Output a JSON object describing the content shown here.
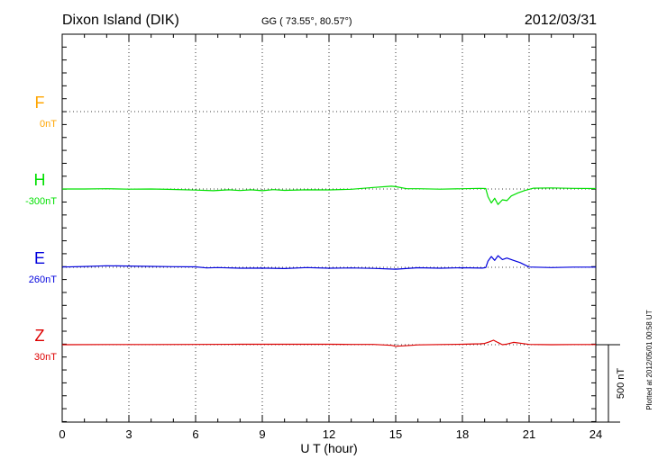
{
  "header": {
    "station": "Dixon Island (DIK)",
    "coords": "GG ( 73.55°,  80.57°)",
    "date": "2012/03/31"
  },
  "footer": {
    "plotted": "Plotted at 2012/05/01 00:58 UT",
    "scale_label": "500 nT"
  },
  "colors": {
    "F": "#ffa500",
    "H": "#00e000",
    "E": "#0000dd",
    "Z": "#dd0000"
  },
  "chart_data": {
    "type": "line",
    "xlabel": "U T (hour)",
    "xlim": [
      0,
      24
    ],
    "x_ticks": [
      "0",
      "3",
      "6",
      "9",
      "12",
      "15",
      "18",
      "21",
      "24"
    ],
    "scale_nT": 500,
    "series": [
      {
        "name": "F",
        "baseline_label": "0nT",
        "color": "#ffa500",
        "points": []
      },
      {
        "name": "H",
        "baseline_label": "-300nT",
        "color": "#00e000",
        "points": [
          [
            0,
            -300
          ],
          [
            1,
            -300
          ],
          [
            2,
            -298
          ],
          [
            3,
            -301
          ],
          [
            4,
            -300
          ],
          [
            5,
            -303
          ],
          [
            6,
            -307
          ],
          [
            6.8,
            -311
          ],
          [
            7.5,
            -305
          ],
          [
            8,
            -310
          ],
          [
            8.5,
            -305
          ],
          [
            9,
            -311
          ],
          [
            9.5,
            -304
          ],
          [
            10,
            -309
          ],
          [
            11,
            -305
          ],
          [
            12,
            -306
          ],
          [
            13,
            -302
          ],
          [
            14,
            -290
          ],
          [
            14.8,
            -282
          ],
          [
            15,
            -285
          ],
          [
            15.5,
            -298
          ],
          [
            16,
            -298
          ],
          [
            17,
            -301
          ],
          [
            18,
            -298
          ],
          [
            18.8,
            -296
          ],
          [
            19.05,
            -297
          ],
          [
            19.15,
            -350
          ],
          [
            19.3,
            -390
          ],
          [
            19.45,
            -360
          ],
          [
            19.6,
            -400
          ],
          [
            19.8,
            -370
          ],
          [
            20,
            -375
          ],
          [
            20.2,
            -345
          ],
          [
            20.5,
            -325
          ],
          [
            20.8,
            -310
          ],
          [
            21.2,
            -295
          ],
          [
            22,
            -293
          ],
          [
            23,
            -296
          ],
          [
            24,
            -297
          ]
        ]
      },
      {
        "name": "E",
        "baseline_label": "260nT",
        "color": "#0000dd",
        "points": [
          [
            0,
            262
          ],
          [
            1,
            265
          ],
          [
            2,
            270
          ],
          [
            3,
            268
          ],
          [
            4,
            266
          ],
          [
            5,
            264
          ],
          [
            6,
            263
          ],
          [
            6.5,
            256
          ],
          [
            7,
            258
          ],
          [
            8,
            254
          ],
          [
            9,
            255
          ],
          [
            10,
            252
          ],
          [
            11,
            258
          ],
          [
            12,
            254
          ],
          [
            13,
            256
          ],
          [
            14,
            253
          ],
          [
            15,
            248
          ],
          [
            16,
            257
          ],
          [
            17,
            254
          ],
          [
            18,
            257
          ],
          [
            18.9,
            255
          ],
          [
            19.05,
            258
          ],
          [
            19.15,
            300
          ],
          [
            19.3,
            330
          ],
          [
            19.45,
            305
          ],
          [
            19.6,
            335
          ],
          [
            19.8,
            310
          ],
          [
            20,
            320
          ],
          [
            20.3,
            305
          ],
          [
            20.6,
            290
          ],
          [
            21,
            262
          ],
          [
            22,
            258
          ],
          [
            23,
            261
          ],
          [
            24,
            261
          ]
        ]
      },
      {
        "name": "Z",
        "baseline_label": "30nT",
        "color": "#dd0000",
        "points": [
          [
            0,
            30
          ],
          [
            2,
            31
          ],
          [
            4,
            31
          ],
          [
            6,
            32
          ],
          [
            8,
            33
          ],
          [
            10,
            33
          ],
          [
            12,
            33
          ],
          [
            13,
            32
          ],
          [
            14,
            32
          ],
          [
            14.8,
            26
          ],
          [
            15,
            20
          ],
          [
            15.4,
            23
          ],
          [
            16,
            29
          ],
          [
            17,
            31
          ],
          [
            18,
            33
          ],
          [
            18.8,
            36
          ],
          [
            19,
            38
          ],
          [
            19.2,
            48
          ],
          [
            19.4,
            59
          ],
          [
            19.6,
            44
          ],
          [
            19.8,
            30
          ],
          [
            20,
            34
          ],
          [
            20.3,
            45
          ],
          [
            20.6,
            40
          ],
          [
            21,
            32
          ],
          [
            22,
            30
          ],
          [
            23,
            31
          ],
          [
            24,
            31
          ]
        ]
      }
    ]
  }
}
